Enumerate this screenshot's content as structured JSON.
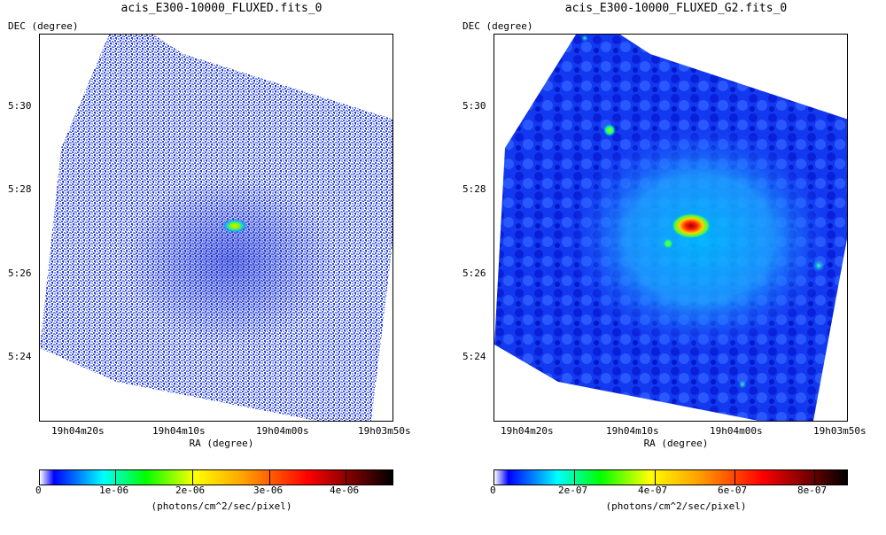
{
  "left_panel": {
    "title": "acis_E300-10000_FLUXED.fits_0",
    "y_axis_label": "DEC (degree)",
    "x_axis_label": "RA (degree)",
    "y_ticks": [
      "5:30",
      "5:28",
      "5:26",
      "5:24"
    ],
    "x_ticks": [
      "19h04m20s",
      "19h04m10s",
      "19h04m00s",
      "19h03m50s"
    ],
    "colorbar": {
      "ticks": [
        "0",
        "1e-06",
        "2e-06",
        "3e-06",
        "4e-06"
      ],
      "unit": "(photons/cm^2/sec/pixel)"
    }
  },
  "right_panel": {
    "title": "acis_E300-10000_FLUXED_G2.fits_0",
    "y_axis_label": "DEC (degree)",
    "x_axis_label": "RA (degree)",
    "y_ticks": [
      "5:30",
      "5:28",
      "5:26",
      "5:24"
    ],
    "x_ticks": [
      "19h04m20s",
      "19h04m10s",
      "19h04m00s",
      "19h03m50s"
    ],
    "colorbar": {
      "ticks": [
        "0",
        "2e-07",
        "4e-07",
        "6e-07",
        "8e-07"
      ],
      "unit": "(photons/cm^2/sec/pixel)"
    }
  },
  "colors": {
    "low": "#0000cc",
    "mid": "#00bfff",
    "peak": "#b00000"
  }
}
